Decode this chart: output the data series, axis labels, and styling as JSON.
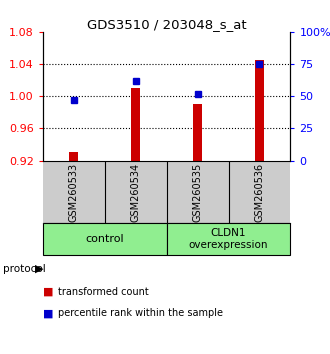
{
  "title": "GDS3510 / 203048_s_at",
  "samples": [
    "GSM260533",
    "GSM260534",
    "GSM260535",
    "GSM260536"
  ],
  "red_values": [
    0.93,
    1.01,
    0.99,
    1.045
  ],
  "blue_values": [
    47,
    62,
    52,
    75
  ],
  "ylim_left": [
    0.92,
    1.08
  ],
  "ylim_right": [
    0,
    100
  ],
  "yticks_left": [
    0.92,
    0.96,
    1.0,
    1.04,
    1.08
  ],
  "yticks_right": [
    0,
    25,
    50,
    75,
    100
  ],
  "legend_red": "transformed count",
  "legend_blue": "percentile rank within the sample",
  "protocol_label": "protocol",
  "bar_color": "#CC0000",
  "dot_color": "#0000CC",
  "bg_color": "#FFFFFF",
  "sample_box_color": "#CCCCCC",
  "group_box_color": "#90EE90",
  "bar_bottom": 0.92,
  "bar_width": 0.15,
  "group1_label": "control",
  "group2_label": "CLDN1\noverexpression",
  "gridlines": [
    0.96,
    1.0,
    1.04
  ]
}
